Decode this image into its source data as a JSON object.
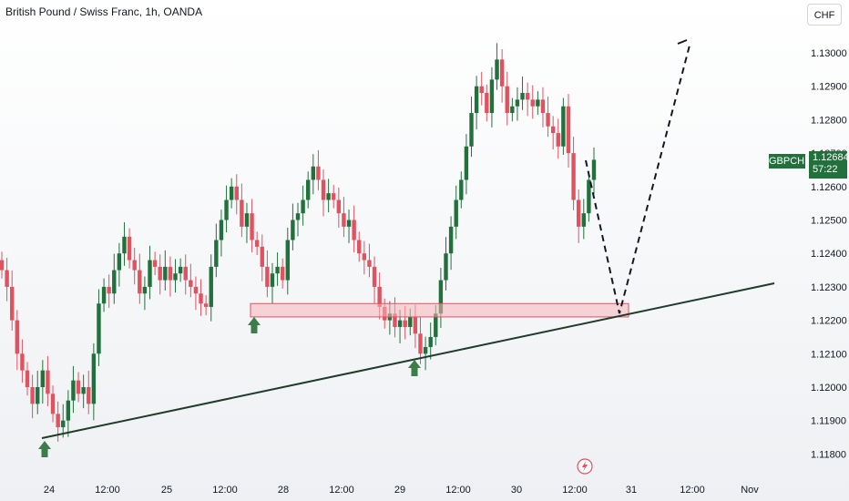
{
  "title": "British Pound / Swiss Franc, 1h, OANDA",
  "currency_button": "CHF",
  "price_tag": {
    "symbol": "GBPCHF",
    "price": "1.12684",
    "countdown": "57:22"
  },
  "colors": {
    "up": "#22713d",
    "down": "#e0525f",
    "zone_fill": "#f5b5ba",
    "zone_stroke": "#e0525f",
    "trend": "#1f3b29",
    "arrow": "#3c7d4a"
  },
  "icons": [
    "lightning-icon",
    "arrow-up-icon"
  ],
  "chart_data": {
    "type": "candlestick",
    "symbol": "GBPCHF",
    "timeframe": "1h",
    "ylim": [
      1.1175,
      1.1305
    ],
    "y_ticks": [
      "1.13000",
      "1.12900",
      "1.12800",
      "1.12700",
      "1.12600",
      "1.12500",
      "1.12400",
      "1.12300",
      "1.12200",
      "1.12100",
      "1.12000",
      "1.11900",
      "1.11800"
    ],
    "x_ticks": [
      "24",
      "12:00",
      "25",
      "12:00",
      "28",
      "12:00",
      "29",
      "12:00",
      "30",
      "12:00",
      "31",
      "12:00",
      "Nov"
    ],
    "close_path": [
      1.1235,
      1.123,
      1.122,
      1.121,
      1.1205,
      1.12,
      1.1195,
      1.12,
      1.1205,
      1.1198,
      1.1192,
      1.1188,
      1.119,
      1.1196,
      1.1202,
      1.1198,
      1.12,
      1.1195,
      1.121,
      1.1225,
      1.123,
      1.1228,
      1.1235,
      1.124,
      1.1245,
      1.1238,
      1.1235,
      1.1228,
      1.123,
      1.1238,
      1.1236,
      1.1232,
      1.1236,
      1.1232,
      1.1234,
      1.1236,
      1.1232,
      1.123,
      1.1228,
      1.1225,
      1.1224,
      1.1236,
      1.1244,
      1.125,
      1.1256,
      1.126,
      1.1256,
      1.1248,
      1.1252,
      1.1244,
      1.1242,
      1.1236,
      1.123,
      1.1234,
      1.1236,
      1.1232,
      1.1244,
      1.125,
      1.1252,
      1.1256,
      1.1262,
      1.1266,
      1.1262,
      1.1256,
      1.1258,
      1.1256,
      1.1252,
      1.1248,
      1.125,
      1.1244,
      1.124,
      1.1238,
      1.1236,
      1.123,
      1.1224,
      1.122,
      1.1222,
      1.1218,
      1.122,
      1.1218,
      1.1221,
      1.1216,
      1.121,
      1.1212,
      1.1215,
      1.1222,
      1.1232,
      1.124,
      1.1248,
      1.1256,
      1.1262,
      1.1272,
      1.1282,
      1.129,
      1.1288,
      1.1282,
      1.1292,
      1.1298,
      1.129,
      1.1282,
      1.1284,
      1.1286,
      1.1288,
      1.1286,
      1.1284,
      1.1286,
      1.1282,
      1.1278,
      1.1276,
      1.1272,
      1.1284,
      1.127,
      1.1256,
      1.1248,
      1.1252,
      1.1262,
      1.1268
    ],
    "support_zone": {
      "low": 1.1221,
      "high": 1.1225
    },
    "trendline": {
      "start": [
        "24",
        1.1187
      ],
      "end": [
        "31",
        1.1232
      ]
    },
    "projection": [
      [
        "30 12:00",
        1.12684
      ],
      [
        "31",
        1.1223
      ],
      [
        "31 12:00",
        1.1302
      ]
    ],
    "bounce_markers": [
      "24",
      "28",
      "29"
    ]
  }
}
